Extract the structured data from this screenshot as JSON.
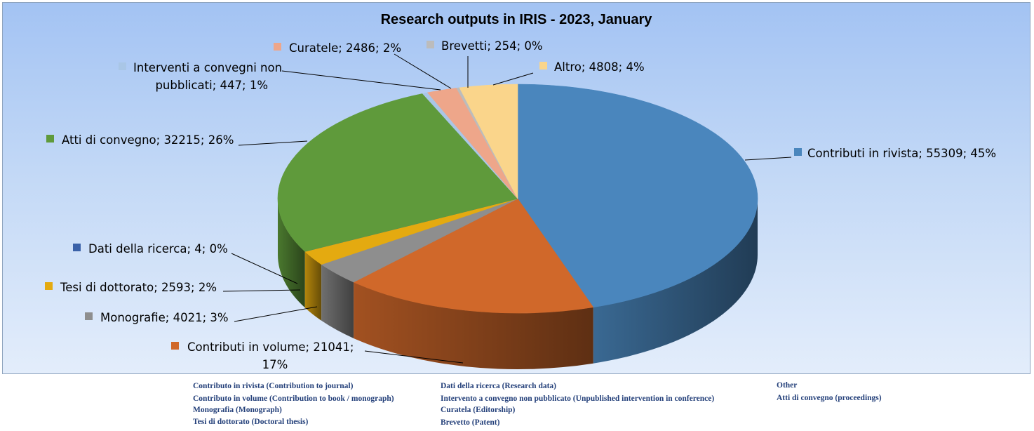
{
  "chart_data": {
    "type": "pie",
    "title": "Research outputs in IRIS - 2023, January",
    "categories": [
      "Contributi in rivista",
      "Contributi in volume",
      "Monografie",
      "Tesi di dottorato",
      "Dati della ricerca",
      "Atti di convegno",
      "Interventi a convegni non pubblicati",
      "Curatele",
      "Brevetti",
      "Altro"
    ],
    "values": [
      55309,
      21041,
      4021,
      2593,
      4,
      32215,
      447,
      2486,
      254,
      4808
    ],
    "percent": [
      "45%",
      "17%",
      "3%",
      "2%",
      "0%",
      "26%",
      "1%",
      "2%",
      "0%",
      "4%"
    ],
    "colors": [
      "#4a86bd",
      "#d0682a",
      "#8e8e8e",
      "#e4aa10",
      "#3a61a8",
      "#5f9a3b",
      "#a9c6e6",
      "#eea68a",
      "#bcbcbc",
      "#fad58b"
    ],
    "labels": [
      [
        "Contributi in rivista; 55309; 45%"
      ],
      [
        "Contributi in volume; 21041;",
        "17%"
      ],
      [
        "Monografie; 4021; 3%"
      ],
      [
        "Tesi di dottorato; 2593; 2%"
      ],
      [
        "Dati della ricerca; 4; 0%"
      ],
      [
        "Atti di convegno; 32215; 26%"
      ],
      [
        "Interventi a convegni non",
        "pubblicati; 447; 1%"
      ],
      [
        "Curatele; 2486; 2%"
      ],
      [
        "Brevetti; 254; 0%"
      ],
      [
        "Altro; 4808; 4%"
      ]
    ]
  },
  "translations": [
    "Contributo in rivista (Contribution to journal)",
    "Contributo in volume (Contribution to book / monograph)",
    "Monografia (Monograph)",
    "Tesi di dottorato (Doctoral thesis)",
    "Dati della ricerca (Research data)",
    "Intervento a convegno non pubblicato (Unpublished intervention in conference)",
    "Curatela (Editorship)",
    "Brevetto (Patent)",
    "Other",
    "Atti di convegno (proceedings)"
  ]
}
